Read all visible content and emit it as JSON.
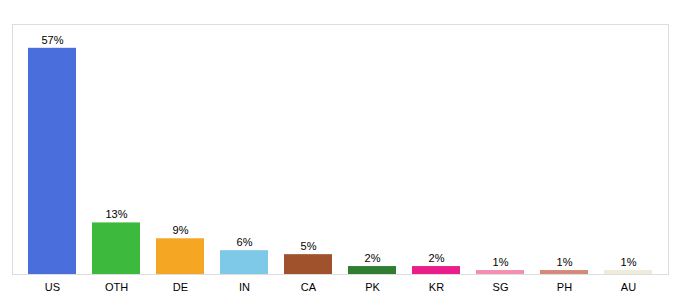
{
  "chart_data": {
    "type": "bar",
    "categories": [
      "US",
      "OTH",
      "DE",
      "IN",
      "CA",
      "PK",
      "KR",
      "SG",
      "PH",
      "AU"
    ],
    "values": [
      57,
      13,
      9,
      6,
      5,
      2,
      2,
      1,
      1,
      1
    ],
    "value_labels": [
      "57%",
      "13%",
      "9%",
      "6%",
      "5%",
      "2%",
      "2%",
      "1%",
      "1%",
      "1%"
    ],
    "colors": [
      "#4a6fdc",
      "#3dba3d",
      "#f5a623",
      "#7ec8e8",
      "#a0522d",
      "#2e7d32",
      "#e91e8c",
      "#f48fb1",
      "#d4897a",
      "#f0ecd8"
    ],
    "ylim": [
      0,
      63
    ],
    "data_labels": true,
    "tick_labels": "x",
    "grid": false
  }
}
